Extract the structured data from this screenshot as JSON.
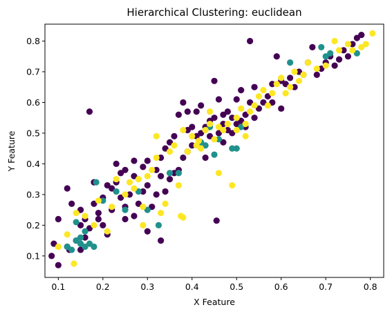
{
  "chart_data": {
    "type": "scatter",
    "title": "Hierarchical  Clustering: euclidean",
    "xlabel": "X Feature",
    "ylabel": "Y Feature",
    "xlim": [
      0.07,
      0.83
    ],
    "ylim": [
      0.03,
      0.855
    ],
    "xticks": [
      0.1,
      0.2,
      0.3,
      0.4,
      0.5,
      0.6,
      0.7,
      0.8
    ],
    "yticks": [
      0.1,
      0.2,
      0.3,
      0.4,
      0.5,
      0.6,
      0.7,
      0.8
    ],
    "grid": false,
    "series": [
      {
        "color": "#440154",
        "points": [
          [
            0.085,
            0.1
          ],
          [
            0.1,
            0.07
          ],
          [
            0.09,
            0.14
          ],
          [
            0.1,
            0.22
          ],
          [
            0.12,
            0.13
          ],
          [
            0.125,
            0.12
          ],
          [
            0.12,
            0.32
          ],
          [
            0.13,
            0.27
          ],
          [
            0.14,
            0.15
          ],
          [
            0.15,
            0.2
          ],
          [
            0.16,
            0.22
          ],
          [
            0.17,
            0.19
          ],
          [
            0.15,
            0.12
          ],
          [
            0.16,
            0.16
          ],
          [
            0.17,
            0.57
          ],
          [
            0.18,
            0.34
          ],
          [
            0.18,
            0.27
          ],
          [
            0.19,
            0.24
          ],
          [
            0.2,
            0.29
          ],
          [
            0.19,
            0.22
          ],
          [
            0.2,
            0.2
          ],
          [
            0.21,
            0.17
          ],
          [
            0.22,
            0.25
          ],
          [
            0.22,
            0.32
          ],
          [
            0.23,
            0.34
          ],
          [
            0.23,
            0.4
          ],
          [
            0.24,
            0.29
          ],
          [
            0.24,
            0.37
          ],
          [
            0.25,
            0.38
          ],
          [
            0.25,
            0.26
          ],
          [
            0.25,
            0.22
          ],
          [
            0.26,
            0.3
          ],
          [
            0.27,
            0.41
          ],
          [
            0.27,
            0.23
          ],
          [
            0.28,
            0.27
          ],
          [
            0.29,
            0.31
          ],
          [
            0.29,
            0.39
          ],
          [
            0.3,
            0.41
          ],
          [
            0.3,
            0.33
          ],
          [
            0.3,
            0.18
          ],
          [
            0.31,
            0.26
          ],
          [
            0.32,
            0.3
          ],
          [
            0.32,
            0.38
          ],
          [
            0.33,
            0.42
          ],
          [
            0.33,
            0.15
          ],
          [
            0.34,
            0.45
          ],
          [
            0.34,
            0.31
          ],
          [
            0.35,
            0.35
          ],
          [
            0.35,
            0.47
          ],
          [
            0.36,
            0.37
          ],
          [
            0.36,
            0.49
          ],
          [
            0.37,
            0.38
          ],
          [
            0.37,
            0.56
          ],
          [
            0.38,
            0.6
          ],
          [
            0.38,
            0.42
          ],
          [
            0.39,
            0.51
          ],
          [
            0.39,
            0.44
          ],
          [
            0.4,
            0.52
          ],
          [
            0.4,
            0.46
          ],
          [
            0.41,
            0.57
          ],
          [
            0.41,
            0.49
          ],
          [
            0.42,
            0.59
          ],
          [
            0.42,
            0.5
          ],
          [
            0.43,
            0.52
          ],
          [
            0.43,
            0.42
          ],
          [
            0.44,
            0.54
          ],
          [
            0.44,
            0.49
          ],
          [
            0.45,
            0.55
          ],
          [
            0.45,
            0.67
          ],
          [
            0.455,
            0.215
          ],
          [
            0.46,
            0.5
          ],
          [
            0.46,
            0.61
          ],
          [
            0.47,
            0.53
          ],
          [
            0.47,
            0.56
          ],
          [
            0.48,
            0.57
          ],
          [
            0.48,
            0.51
          ],
          [
            0.49,
            0.55
          ],
          [
            0.49,
            0.5
          ],
          [
            0.5,
            0.53
          ],
          [
            0.5,
            0.61
          ],
          [
            0.51,
            0.54
          ],
          [
            0.51,
            0.64
          ],
          [
            0.52,
            0.56
          ],
          [
            0.52,
            0.52
          ],
          [
            0.53,
            0.6
          ],
          [
            0.53,
            0.8
          ],
          [
            0.54,
            0.55
          ],
          [
            0.54,
            0.65
          ],
          [
            0.55,
            0.58
          ],
          [
            0.56,
            0.6
          ],
          [
            0.57,
            0.62
          ],
          [
            0.58,
            0.66
          ],
          [
            0.58,
            0.6
          ],
          [
            0.59,
            0.75
          ],
          [
            0.6,
            0.58
          ],
          [
            0.6,
            0.67
          ],
          [
            0.61,
            0.66
          ],
          [
            0.62,
            0.68
          ],
          [
            0.63,
            0.65
          ],
          [
            0.64,
            0.7
          ],
          [
            0.65,
            0.69
          ],
          [
            0.66,
            0.73
          ],
          [
            0.67,
            0.78
          ],
          [
            0.68,
            0.69
          ],
          [
            0.69,
            0.71
          ],
          [
            0.7,
            0.73
          ],
          [
            0.71,
            0.75
          ],
          [
            0.72,
            0.72
          ],
          [
            0.73,
            0.74
          ],
          [
            0.74,
            0.77
          ],
          [
            0.75,
            0.75
          ],
          [
            0.76,
            0.79
          ],
          [
            0.77,
            0.81
          ],
          [
            0.78,
            0.82
          ],
          [
            0.15,
            0.25
          ],
          [
            0.21,
            0.33
          ],
          [
            0.27,
            0.36
          ],
          [
            0.33,
            0.36
          ],
          [
            0.39,
            0.57
          ],
          [
            0.47,
            0.47
          ]
        ]
      },
      {
        "color": "#21918c",
        "points": [
          [
            0.12,
            0.13
          ],
          [
            0.13,
            0.12
          ],
          [
            0.14,
            0.15
          ],
          [
            0.15,
            0.16
          ],
          [
            0.15,
            0.14
          ],
          [
            0.16,
            0.13
          ],
          [
            0.17,
            0.14
          ],
          [
            0.18,
            0.13
          ],
          [
            0.185,
            0.34
          ],
          [
            0.2,
            0.28
          ],
          [
            0.23,
            0.31
          ],
          [
            0.25,
            0.25
          ],
          [
            0.28,
            0.31
          ],
          [
            0.3,
            0.25
          ],
          [
            0.325,
            0.2
          ],
          [
            0.35,
            0.37
          ],
          [
            0.37,
            0.37
          ],
          [
            0.42,
            0.47
          ],
          [
            0.43,
            0.46
          ],
          [
            0.45,
            0.43
          ],
          [
            0.46,
            0.48
          ],
          [
            0.49,
            0.45
          ],
          [
            0.5,
            0.45
          ],
          [
            0.51,
            0.52
          ],
          [
            0.62,
            0.73
          ],
          [
            0.7,
            0.75
          ],
          [
            0.71,
            0.76
          ],
          [
            0.77,
            0.76
          ],
          [
            0.69,
            0.78
          ],
          [
            0.14,
            0.21
          ],
          [
            0.16,
            0.18
          ],
          [
            0.44,
            0.52
          ]
        ]
      },
      {
        "color": "#fde725",
        "points": [
          [
            0.1,
            0.13
          ],
          [
            0.12,
            0.17
          ],
          [
            0.135,
            0.075
          ],
          [
            0.14,
            0.24
          ],
          [
            0.16,
            0.23
          ],
          [
            0.18,
            0.2
          ],
          [
            0.19,
            0.28
          ],
          [
            0.21,
            0.18
          ],
          [
            0.22,
            0.26
          ],
          [
            0.23,
            0.35
          ],
          [
            0.25,
            0.3
          ],
          [
            0.26,
            0.34
          ],
          [
            0.27,
            0.32
          ],
          [
            0.28,
            0.35
          ],
          [
            0.29,
            0.2
          ],
          [
            0.29,
            0.26
          ],
          [
            0.3,
            0.36
          ],
          [
            0.31,
            0.38
          ],
          [
            0.32,
            0.42
          ],
          [
            0.32,
            0.49
          ],
          [
            0.33,
            0.24
          ],
          [
            0.34,
            0.27
          ],
          [
            0.35,
            0.44
          ],
          [
            0.36,
            0.46
          ],
          [
            0.37,
            0.33
          ],
          [
            0.375,
            0.23
          ],
          [
            0.38,
            0.225
          ],
          [
            0.39,
            0.44
          ],
          [
            0.4,
            0.49
          ],
          [
            0.41,
            0.46
          ],
          [
            0.42,
            0.45
          ],
          [
            0.43,
            0.51
          ],
          [
            0.44,
            0.53
          ],
          [
            0.45,
            0.48
          ],
          [
            0.46,
            0.37
          ],
          [
            0.47,
            0.51
          ],
          [
            0.48,
            0.53
          ],
          [
            0.49,
            0.33
          ],
          [
            0.5,
            0.51
          ],
          [
            0.5,
            0.55
          ],
          [
            0.51,
            0.58
          ],
          [
            0.52,
            0.53
          ],
          [
            0.53,
            0.57
          ],
          [
            0.54,
            0.59
          ],
          [
            0.55,
            0.62
          ],
          [
            0.56,
            0.64
          ],
          [
            0.57,
            0.59
          ],
          [
            0.58,
            0.63
          ],
          [
            0.59,
            0.66
          ],
          [
            0.6,
            0.68
          ],
          [
            0.61,
            0.63
          ],
          [
            0.62,
            0.65
          ],
          [
            0.63,
            0.7
          ],
          [
            0.64,
            0.67
          ],
          [
            0.65,
            0.69
          ],
          [
            0.66,
            0.73
          ],
          [
            0.68,
            0.71
          ],
          [
            0.7,
            0.72
          ],
          [
            0.72,
            0.8
          ],
          [
            0.73,
            0.77
          ],
          [
            0.75,
            0.79
          ],
          [
            0.76,
            0.77
          ],
          [
            0.78,
            0.78
          ],
          [
            0.79,
            0.79
          ],
          [
            0.805,
            0.825
          ],
          [
            0.44,
            0.57
          ],
          [
            0.38,
            0.51
          ],
          [
            0.52,
            0.49
          ],
          [
            0.415,
            0.475
          ],
          [
            0.46,
            0.52
          ]
        ]
      }
    ]
  }
}
